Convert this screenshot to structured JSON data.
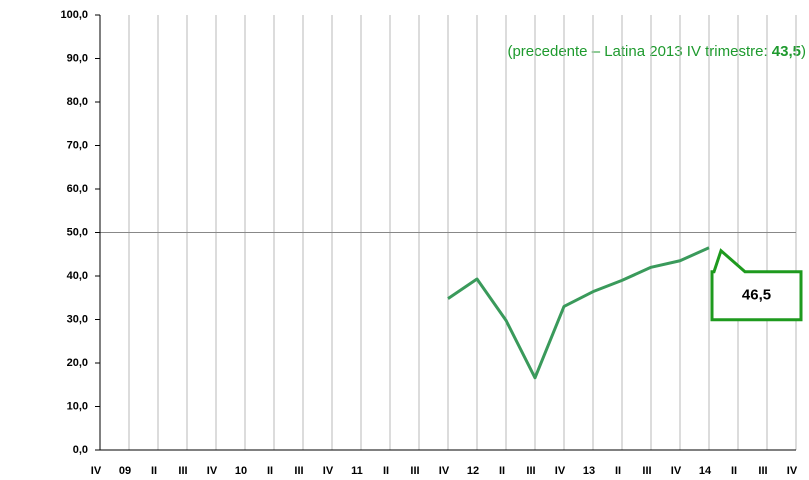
{
  "chart_data": {
    "type": "line",
    "categories": [
      "IV",
      "09",
      "II",
      "III",
      "IV",
      "10",
      "II",
      "III",
      "IV",
      "11",
      "II",
      "III",
      "IV",
      "12",
      "II",
      "III",
      "IV",
      "13",
      "II",
      "III",
      "IV",
      "14",
      "II",
      "III",
      "IV"
    ],
    "values": [
      null,
      null,
      null,
      null,
      null,
      null,
      null,
      null,
      null,
      null,
      null,
      null,
      34.8,
      39.3,
      29.8,
      16.6,
      33.0,
      36.4,
      39.0,
      42.0,
      43.5,
      46.5,
      null,
      null,
      null
    ],
    "value_labels": [
      null,
      null,
      null,
      null,
      null,
      null,
      null,
      null,
      null,
      null,
      null,
      null,
      null,
      null,
      null,
      null,
      null,
      null,
      null,
      null,
      null,
      "46,5",
      null,
      null,
      null
    ],
    "color": "#3a9a5b",
    "ylim": [
      0,
      100
    ],
    "yticks": [
      {
        "value": 0,
        "label": "0,0"
      },
      {
        "value": 10,
        "label": "10,0"
      },
      {
        "value": 20,
        "label": "20,0"
      },
      {
        "value": 30,
        "label": "30,0"
      },
      {
        "value": 40,
        "label": "40,0"
      },
      {
        "value": 50,
        "label": "50,0"
      },
      {
        "value": 60,
        "label": "60,0"
      },
      {
        "value": 70,
        "label": "70,0"
      },
      {
        "value": 80,
        "label": "80,0"
      },
      {
        "value": 90,
        "label": "90,0"
      },
      {
        "value": 100,
        "label": "100,0"
      }
    ],
    "grid": true,
    "annotation": {
      "text": "(precedente – Latina 2013 IV trimestre: ",
      "highlight": "43,5",
      "close": ")"
    }
  }
}
